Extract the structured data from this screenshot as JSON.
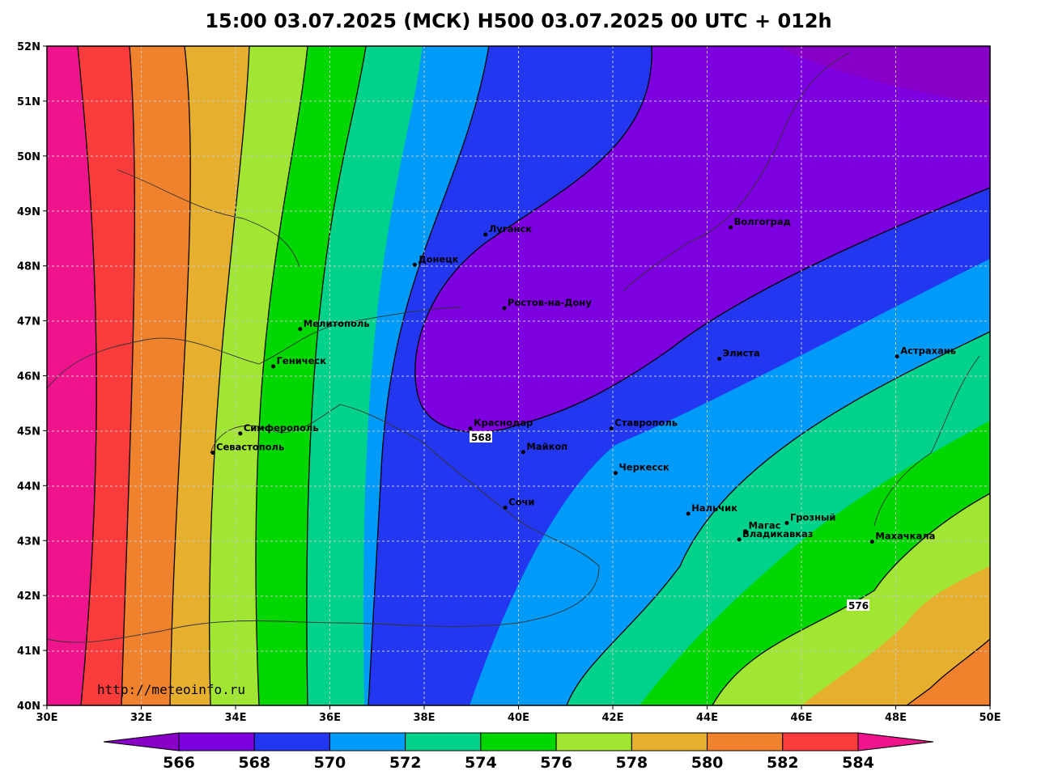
{
  "title": "15:00 03.07.2025 (МСК) H500  03.07.2025 00 UTC + 012h",
  "credit": "http://meteoinfo.ru",
  "map": {
    "lon_range": [
      30,
      50
    ],
    "lat_range": [
      40,
      52
    ],
    "x_ticks": [
      "30E",
      "32E",
      "34E",
      "36E",
      "38E",
      "40E",
      "42E",
      "44E",
      "46E",
      "48E",
      "50E"
    ],
    "y_ticks": [
      "52N",
      "51N",
      "50N",
      "49N",
      "48N",
      "47N",
      "46N",
      "45N",
      "44N",
      "43N",
      "42N",
      "41N",
      "40N"
    ],
    "contour_labels": [
      "568",
      "576"
    ],
    "cities": [
      {
        "name": "Луганск",
        "lon": 39.3,
        "lat": 48.57
      },
      {
        "name": "Донецк",
        "lon": 37.8,
        "lat": 48.02
      },
      {
        "name": "Ростов-на-Дону",
        "lon": 39.7,
        "lat": 47.23
      },
      {
        "name": "Мелитополь",
        "lon": 35.37,
        "lat": 46.85
      },
      {
        "name": "Геническ",
        "lon": 34.8,
        "lat": 46.17
      },
      {
        "name": "Симферополь",
        "lon": 34.1,
        "lat": 44.95
      },
      {
        "name": "Севастополь",
        "lon": 33.52,
        "lat": 44.6
      },
      {
        "name": "Краснодар",
        "lon": 38.98,
        "lat": 45.04
      },
      {
        "name": "Майкоп",
        "lon": 40.1,
        "lat": 44.61
      },
      {
        "name": "Сочи",
        "lon": 39.72,
        "lat": 43.6
      },
      {
        "name": "Ставрополь",
        "lon": 41.97,
        "lat": 45.04
      },
      {
        "name": "Черкесск",
        "lon": 42.06,
        "lat": 44.23
      },
      {
        "name": "Нальчик",
        "lon": 43.6,
        "lat": 43.49
      },
      {
        "name": "Владикавказ",
        "lon": 44.68,
        "lat": 43.02
      },
      {
        "name": "Магас",
        "lon": 44.81,
        "lat": 43.17
      },
      {
        "name": "Грозный",
        "lon": 45.69,
        "lat": 43.32
      },
      {
        "name": "Махачкала",
        "lon": 47.5,
        "lat": 42.98
      },
      {
        "name": "Элиста",
        "lon": 44.26,
        "lat": 46.31
      },
      {
        "name": "Астрахань",
        "lon": 48.03,
        "lat": 46.35
      },
      {
        "name": "Волгоград",
        "lon": 44.5,
        "lat": 48.7
      }
    ]
  },
  "legend": {
    "levels": [
      "566",
      "568",
      "570",
      "572",
      "574",
      "576",
      "578",
      "580",
      "582",
      "584"
    ],
    "colors": [
      "#8800c8",
      "#7d00e0",
      "#2437f0",
      "#009af8",
      "#00d28c",
      "#00d700",
      "#a0e632",
      "#e6af2d",
      "#f0822d",
      "#fa3c3c",
      "#f0148c"
    ]
  }
}
